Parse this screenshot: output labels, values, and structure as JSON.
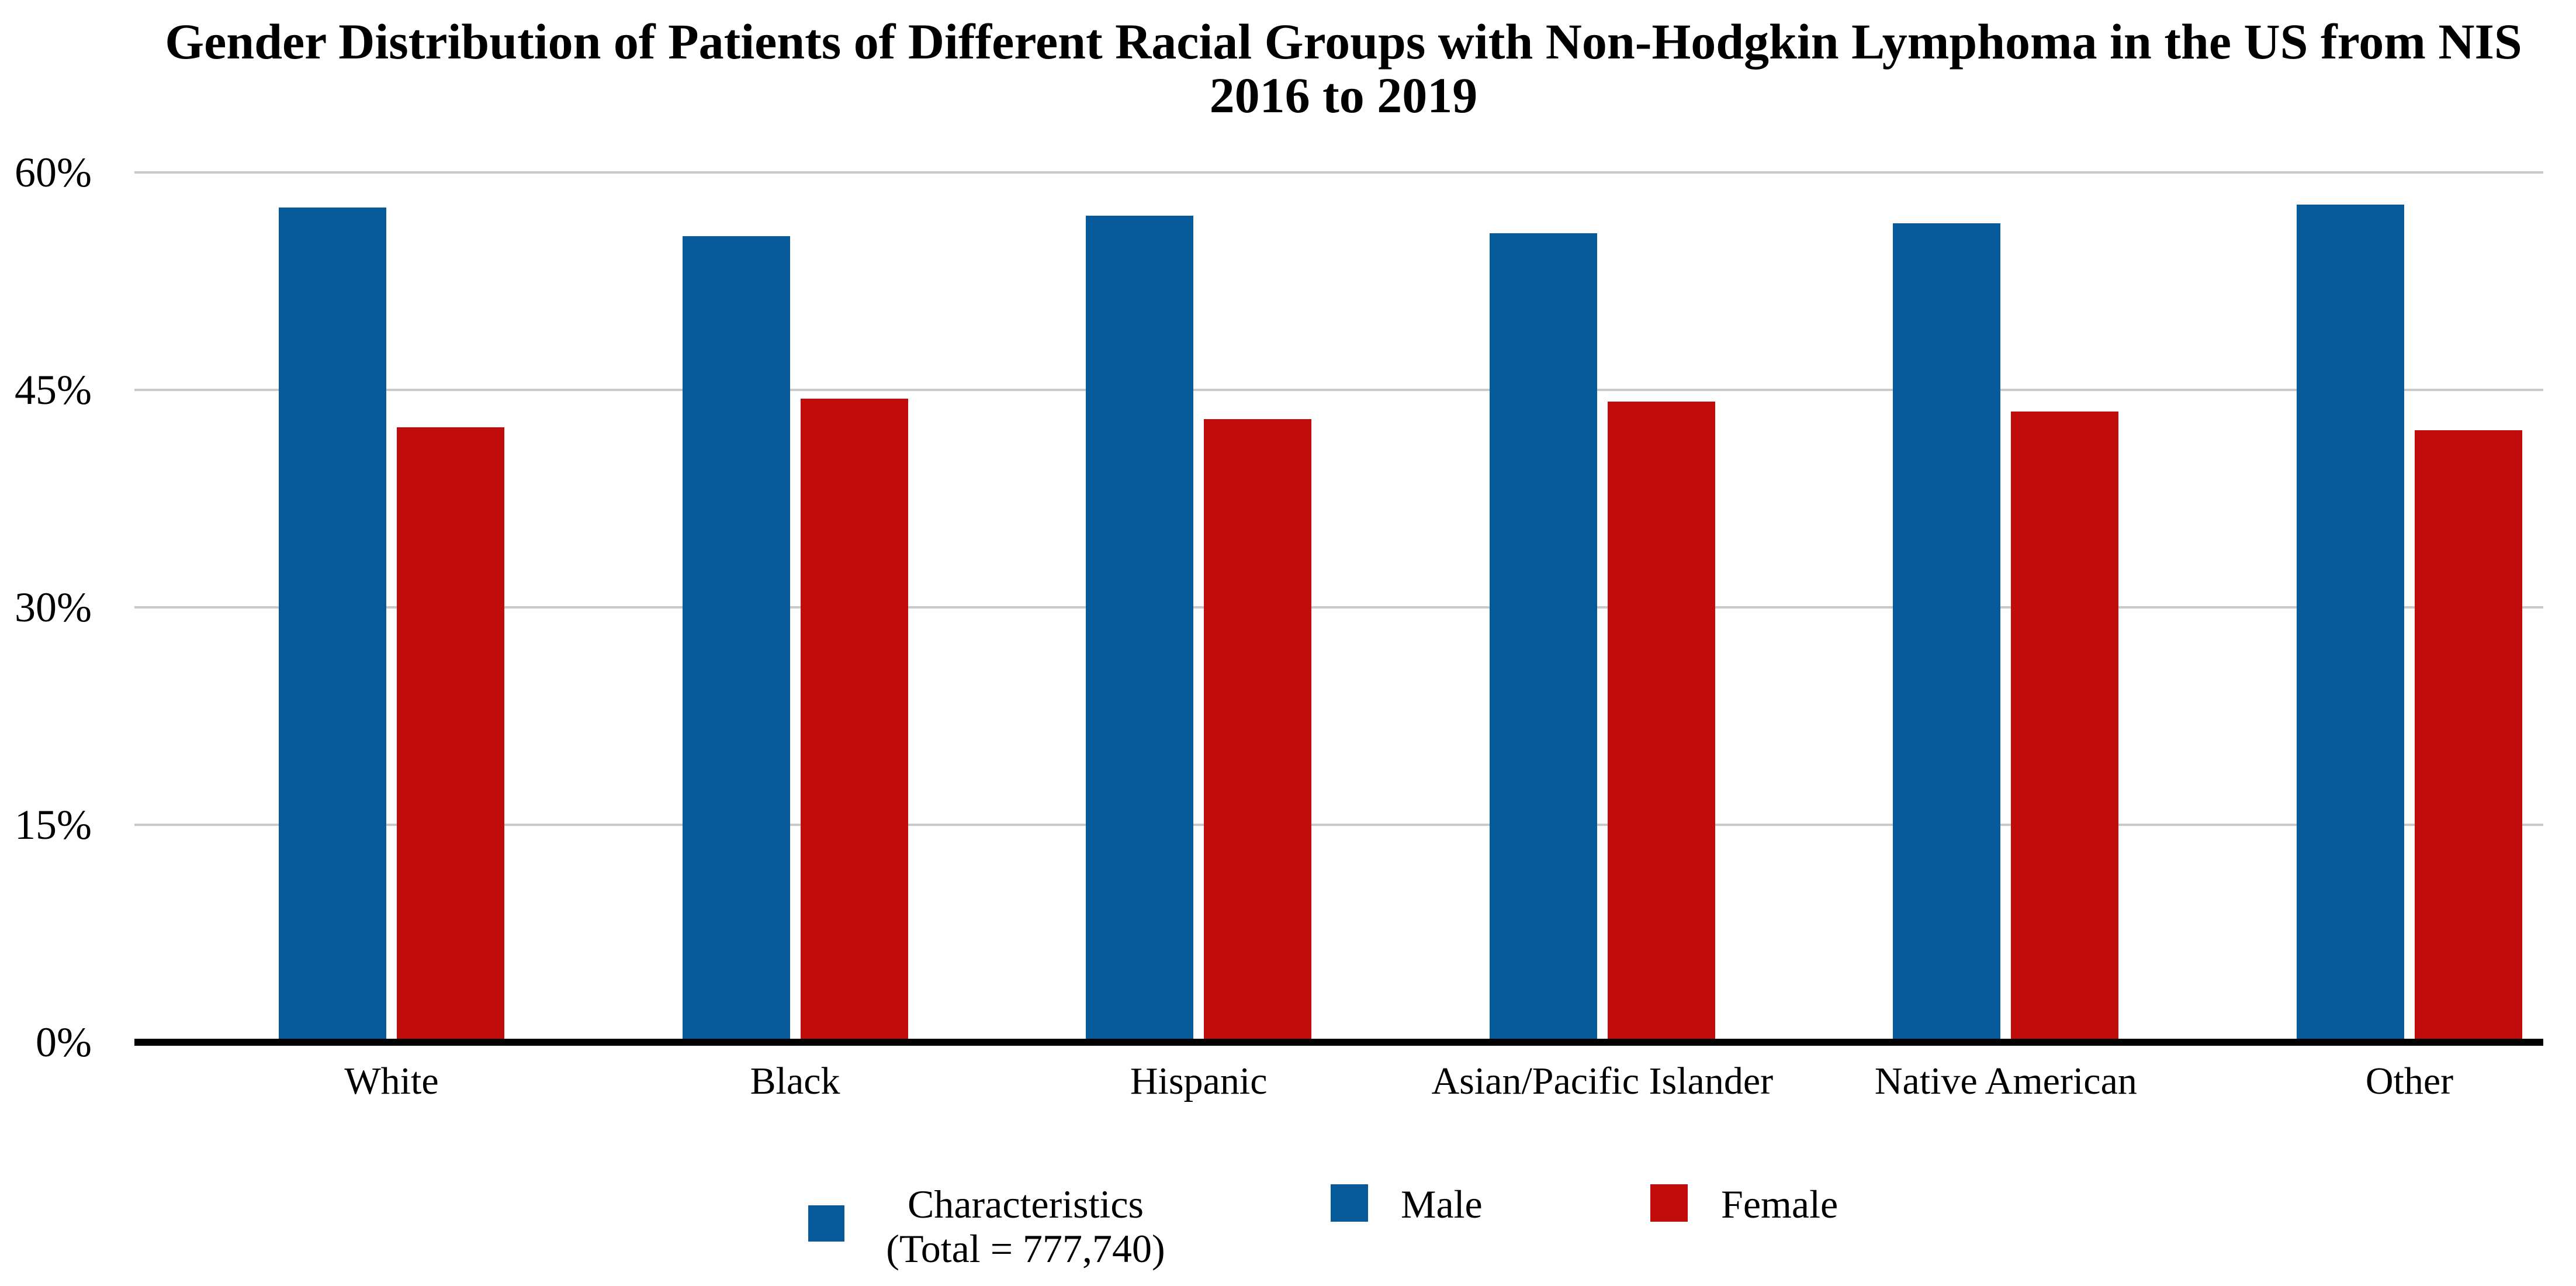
{
  "title": {
    "line1": "Gender Distribution of Patients of Different Racial Groups with Non-Hodgkin Lymphoma in the US from NIS",
    "line2": "2016 to 2019"
  },
  "chart_data": {
    "type": "bar",
    "title": "Gender Distribution of Patients of Different Racial Groups with Non-Hodgkin Lymphoma in the US from NIS 2016 to 2019",
    "categories": [
      "White",
      "Black",
      "Hispanic",
      "Asian/Pacific Islander",
      "Native American",
      "Other"
    ],
    "series": [
      {
        "name": "Male",
        "color": "#075A99",
        "values": [
          57.6,
          55.6,
          57.0,
          55.8,
          56.5,
          57.8
        ]
      },
      {
        "name": "Female",
        "color": "#C00D0C",
        "values": [
          42.4,
          44.4,
          43.0,
          44.2,
          43.5,
          42.2
        ]
      }
    ],
    "xlabel": "",
    "ylabel": "",
    "ylim": [
      0,
      60
    ],
    "yticks": [
      {
        "value": 0,
        "label": "0%"
      },
      {
        "value": 15,
        "label": "15%"
      },
      {
        "value": 30,
        "label": "30%"
      },
      {
        "value": 45,
        "label": "45%"
      },
      {
        "value": 60,
        "label": "60%"
      }
    ],
    "grid": true,
    "legend_position": "bottom",
    "legend_entries": [
      "Characteristics (Total = 777,740)",
      "Male",
      "Female"
    ]
  },
  "legend": {
    "items": [
      {
        "label_line1": "Characteristics",
        "label_line2": "(Total = 777,740)",
        "color": "#075A99"
      },
      {
        "label": "Male",
        "color": "#075A99"
      },
      {
        "label": "Female",
        "color": "#C00D0C"
      }
    ]
  },
  "colors": {
    "male_bar": "#075A99",
    "female_bar": "#C00D0C",
    "gridline": "#C9C9C9",
    "axis": "#000000",
    "background": "#FFFFFF"
  }
}
